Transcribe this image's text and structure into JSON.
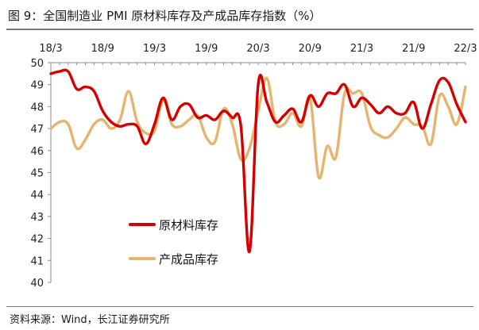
{
  "figure": {
    "title": "图 9：全国制造业 PMI 原材料库存及产成品库存指数（%）",
    "source": "资料来源：Wind，长江证券研究所"
  },
  "chart_data": {
    "type": "line",
    "title": "全国制造业 PMI 原材料库存及产成品库存指数（%）",
    "xlabel": "",
    "ylabel": "",
    "ylim": [
      40,
      50
    ],
    "yticks": [
      "40",
      "41",
      "42",
      "43",
      "44",
      "45",
      "46",
      "47",
      "48",
      "49",
      "50"
    ],
    "xtick_labels": [
      "18/3",
      "18/9",
      "19/3",
      "19/9",
      "20/3",
      "20/9",
      "21/3",
      "21/9",
      "22/3"
    ],
    "x": [
      "18/3",
      "18/4",
      "18/5",
      "18/6",
      "18/7",
      "18/8",
      "18/9",
      "18/10",
      "18/11",
      "18/12",
      "19/1",
      "19/2",
      "19/3",
      "19/4",
      "19/5",
      "19/6",
      "19/7",
      "19/8",
      "19/9",
      "19/10",
      "19/11",
      "19/12",
      "20/1",
      "20/2",
      "20/3",
      "20/4",
      "20/5",
      "20/6",
      "20/7",
      "20/8",
      "20/9",
      "20/10",
      "20/11",
      "20/12",
      "21/1",
      "21/2",
      "21/3",
      "21/4",
      "21/5",
      "21/6",
      "21/7",
      "21/8",
      "21/9",
      "21/10",
      "21/11",
      "21/12",
      "22/1",
      "22/2",
      "22/3"
    ],
    "grid": false,
    "legend_position": "lower-left",
    "series": [
      {
        "name": "原材料库存",
        "color": "#d40000",
        "values": [
          49.5,
          49.6,
          49.6,
          48.8,
          48.9,
          48.7,
          47.8,
          47.3,
          47.1,
          47.2,
          47.1,
          46.3,
          47.2,
          48.4,
          47.4,
          48.0,
          48.1,
          47.5,
          47.6,
          47.4,
          47.8,
          47.5,
          47.1,
          41.4,
          49.0,
          48.2,
          47.3,
          47.6,
          47.9,
          47.3,
          48.5,
          48.0,
          48.6,
          48.6,
          49.0,
          48.0,
          48.4,
          48.1,
          47.7,
          48.0,
          47.7,
          47.7,
          48.2,
          47.0,
          48.1,
          49.2,
          49.1,
          48.1,
          47.3
        ]
      },
      {
        "name": "产成品库存",
        "color": "#e6b46e",
        "values": [
          47.0,
          47.3,
          47.2,
          46.1,
          46.5,
          47.2,
          47.4,
          47.0,
          47.4,
          48.7,
          47.3,
          46.8,
          46.9,
          48.3,
          47.2,
          47.1,
          47.4,
          47.6,
          46.6,
          46.4,
          47.9,
          47.2,
          45.6,
          46.1,
          47.8,
          49.3,
          47.3,
          47.2,
          47.7,
          47.1,
          48.4,
          44.8,
          46.2,
          45.7,
          48.6,
          48.6,
          48.6,
          47.1,
          46.7,
          46.6,
          47.0,
          47.5,
          47.2,
          47.1,
          46.3,
          48.5,
          48.0,
          47.2,
          48.9
        ]
      }
    ]
  }
}
